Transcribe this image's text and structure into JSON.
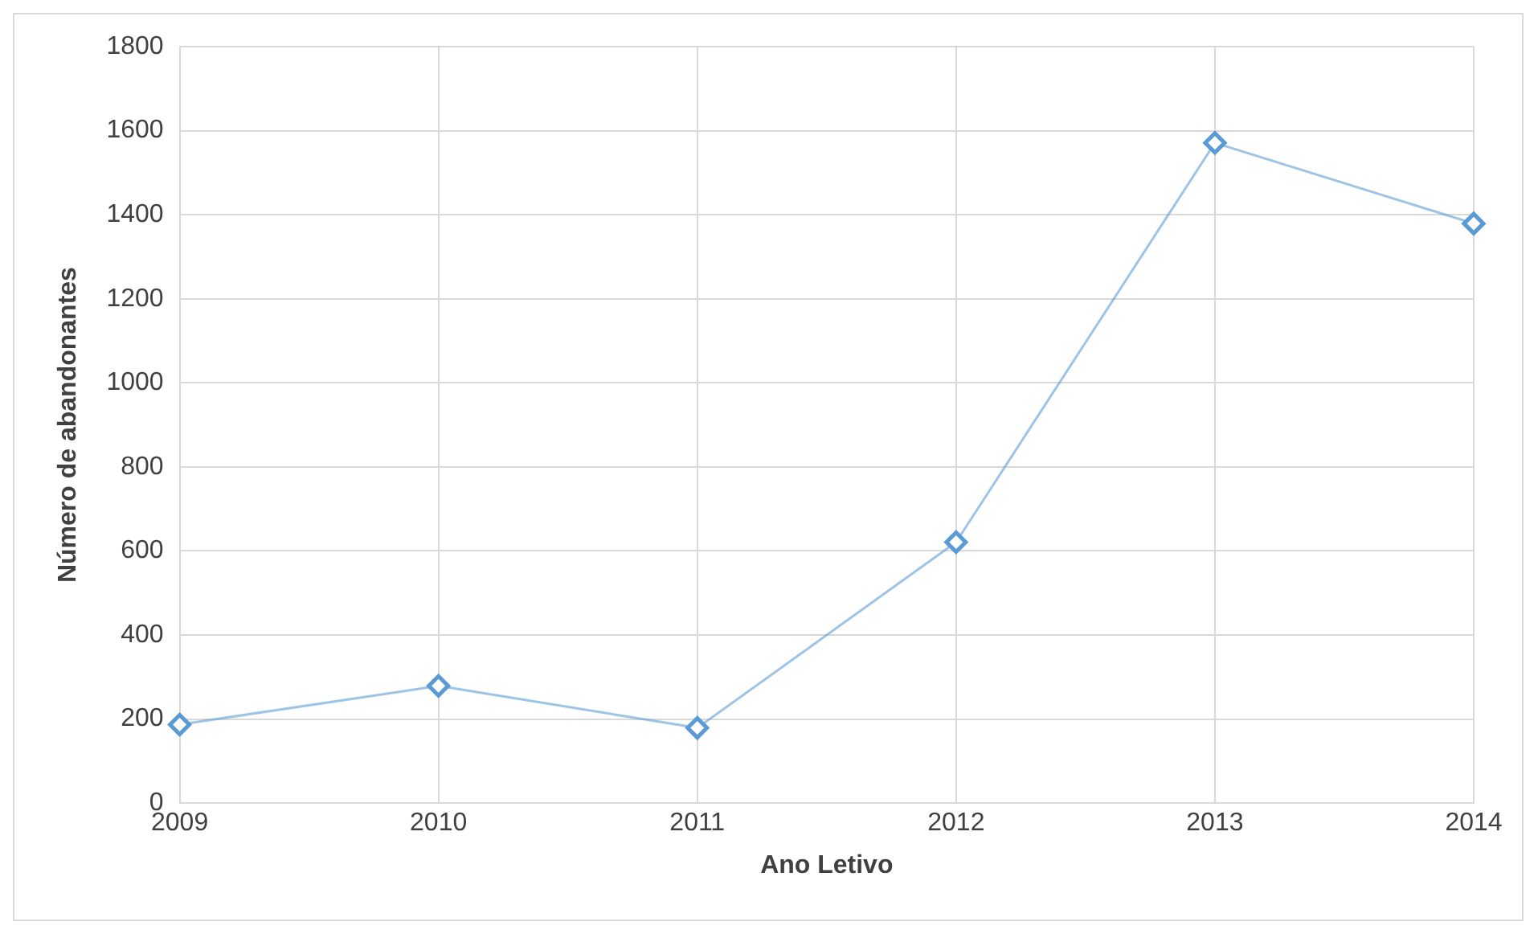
{
  "chart_data": {
    "type": "line",
    "xlabel": "Ano Letivo",
    "ylabel": "Número de abandonantes",
    "x": [
      2009,
      2010,
      2011,
      2012,
      2013,
      2014
    ],
    "series": [
      {
        "color": "#5b9bd5",
        "values": [
          187,
          279,
          179,
          621,
          1571,
          1379
        ]
      }
    ],
    "xlim": [
      2009,
      2014
    ],
    "xticks": [
      2009,
      2010,
      2011,
      2012,
      2013,
      2014
    ],
    "ylim": [
      0,
      1800
    ],
    "yticks": [
      0,
      200,
      400,
      600,
      800,
      1000,
      1200,
      1400,
      1600,
      1800
    ],
    "grid": true,
    "legend": false,
    "marker": "diamond",
    "line_style": "solid"
  }
}
